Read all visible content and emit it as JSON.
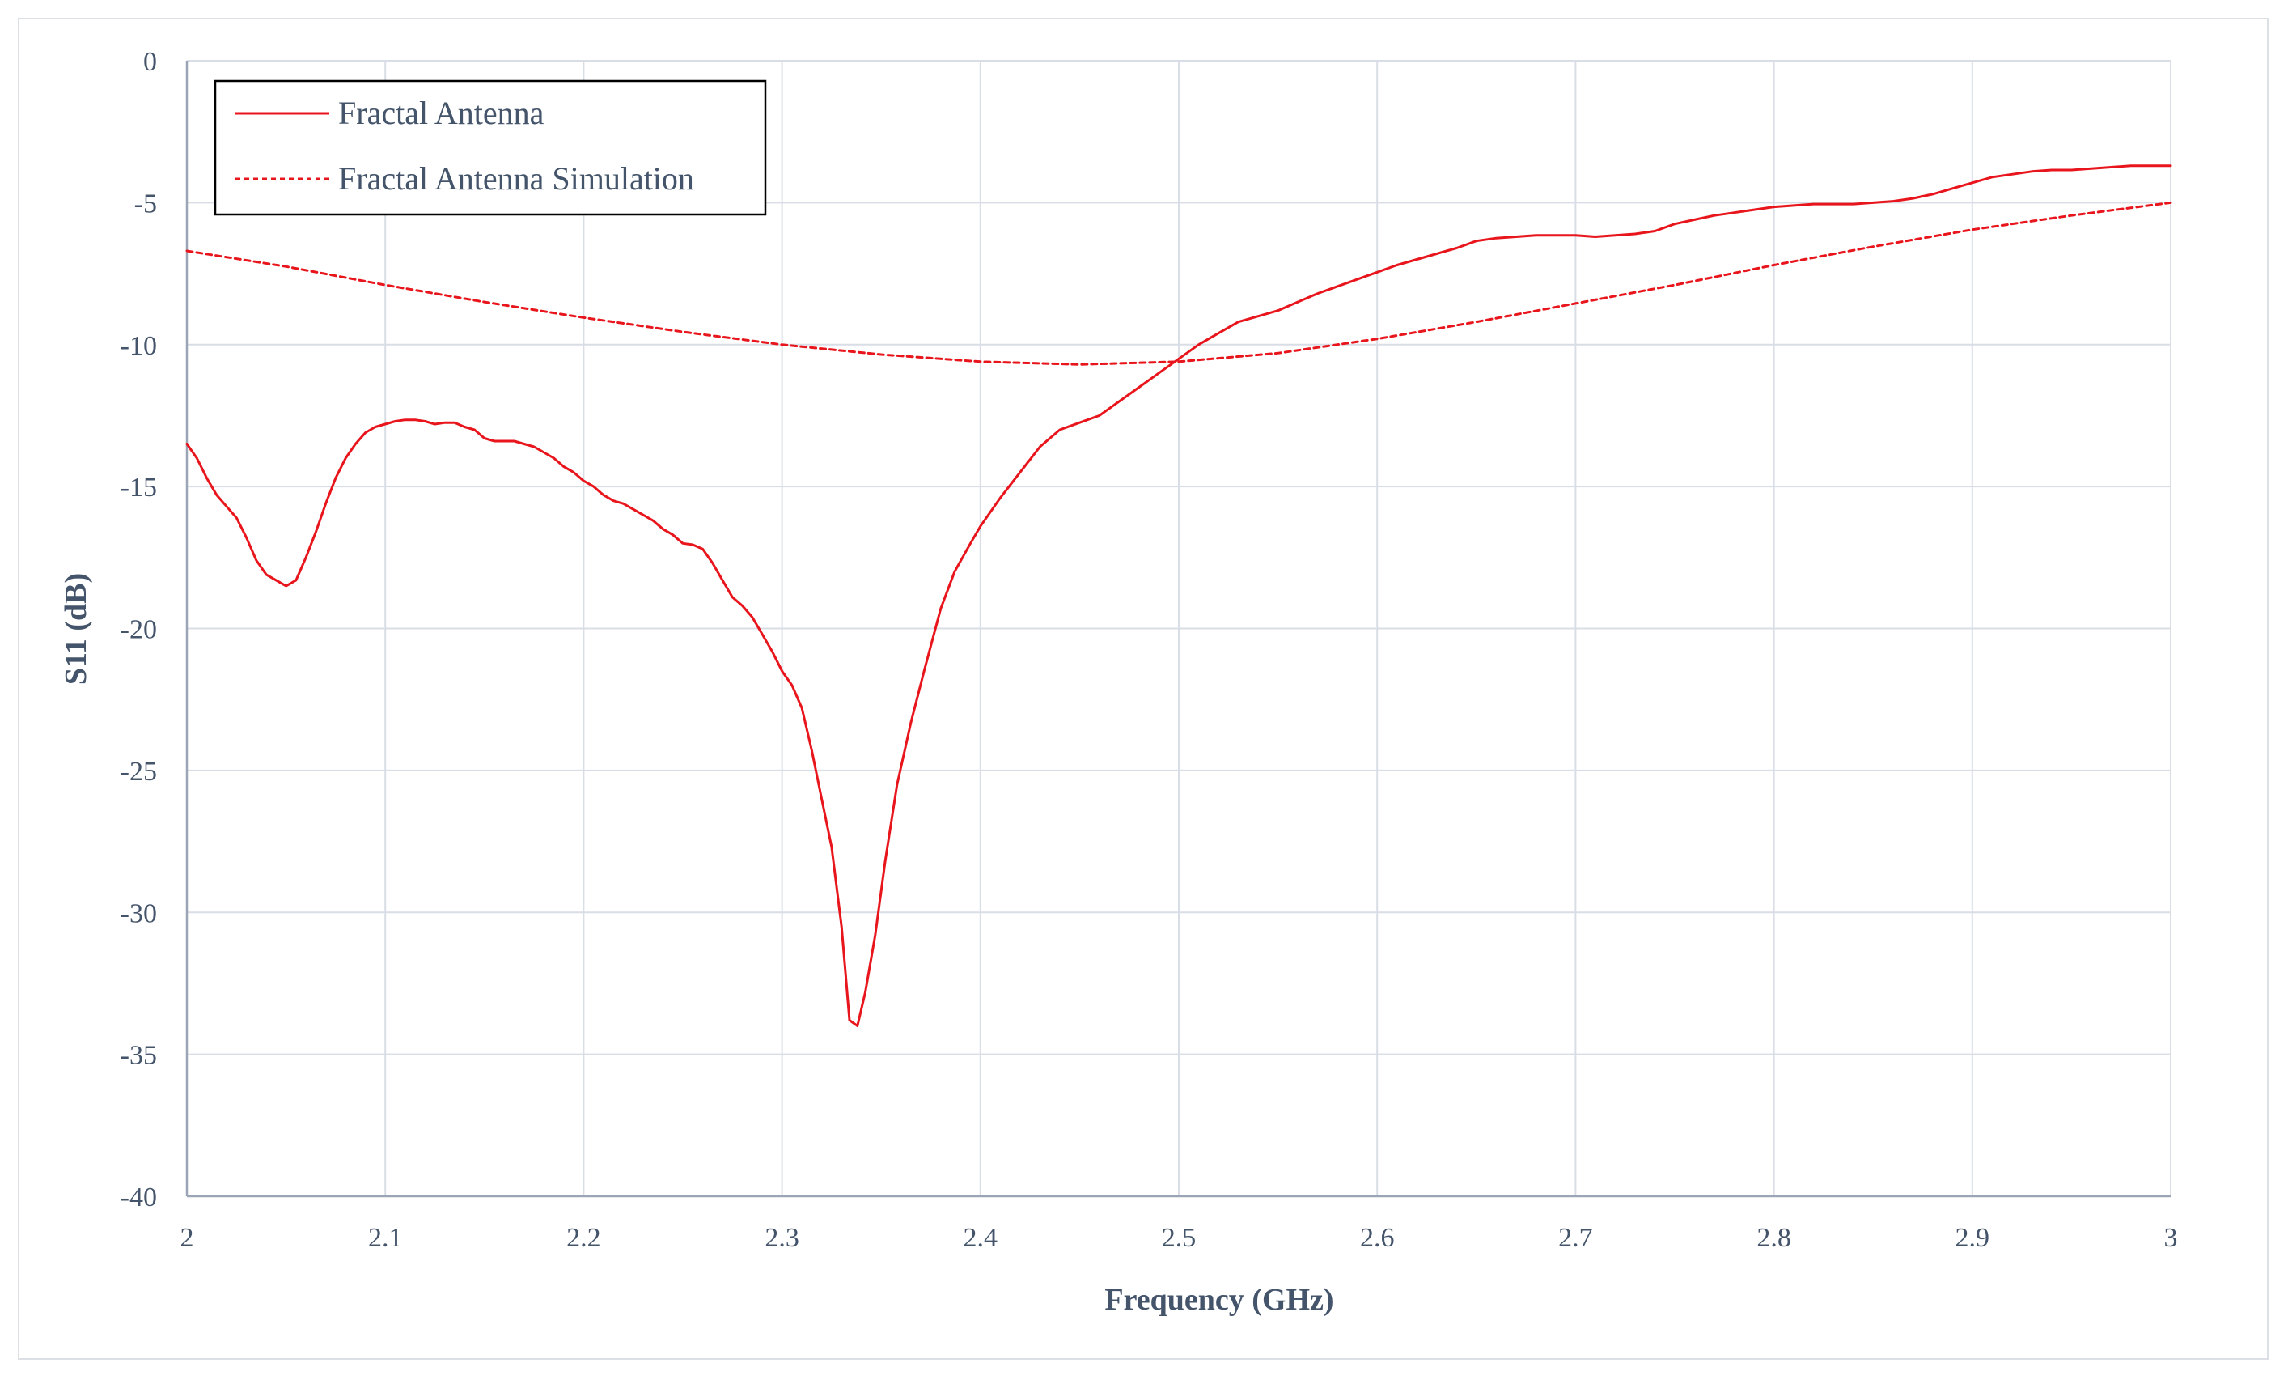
{
  "chart_data": {
    "type": "line",
    "xlabel": "Frequency (GHz)",
    "ylabel": "S11 (dB)",
    "xlim": [
      2,
      3
    ],
    "ylim": [
      -40,
      0
    ],
    "xticks": [
      "2",
      "2.1",
      "2.2",
      "2.3",
      "2.4",
      "2.5",
      "2.6",
      "2.7",
      "2.8",
      "2.9",
      "3"
    ],
    "yticks": [
      "0",
      "-5",
      "-10",
      "-15",
      "-20",
      "-25",
      "-30",
      "-35",
      "-40"
    ],
    "grid": true,
    "legend_position": "top-left",
    "series_color": "#e8161c",
    "series": [
      {
        "name": "Fractal Antenna",
        "style": "solid",
        "points": [
          [
            2.0,
            -13.5
          ],
          [
            2.005,
            -14.0
          ],
          [
            2.01,
            -14.7
          ],
          [
            2.015,
            -15.3
          ],
          [
            2.02,
            -15.7
          ],
          [
            2.025,
            -16.1
          ],
          [
            2.03,
            -16.8
          ],
          [
            2.035,
            -17.6
          ],
          [
            2.04,
            -18.1
          ],
          [
            2.045,
            -18.3
          ],
          [
            2.05,
            -18.5
          ],
          [
            2.055,
            -18.3
          ],
          [
            2.06,
            -17.5
          ],
          [
            2.065,
            -16.6
          ],
          [
            2.07,
            -15.6
          ],
          [
            2.075,
            -14.7
          ],
          [
            2.08,
            -14.0
          ],
          [
            2.085,
            -13.5
          ],
          [
            2.09,
            -13.1
          ],
          [
            2.095,
            -12.9
          ],
          [
            2.1,
            -12.8
          ],
          [
            2.105,
            -12.7
          ],
          [
            2.11,
            -12.65
          ],
          [
            2.115,
            -12.65
          ],
          [
            2.12,
            -12.7
          ],
          [
            2.125,
            -12.8
          ],
          [
            2.13,
            -12.75
          ],
          [
            2.135,
            -12.75
          ],
          [
            2.14,
            -12.9
          ],
          [
            2.145,
            -13.0
          ],
          [
            2.15,
            -13.3
          ],
          [
            2.155,
            -13.4
          ],
          [
            2.16,
            -13.4
          ],
          [
            2.165,
            -13.4
          ],
          [
            2.17,
            -13.5
          ],
          [
            2.175,
            -13.6
          ],
          [
            2.18,
            -13.8
          ],
          [
            2.185,
            -14.0
          ],
          [
            2.19,
            -14.3
          ],
          [
            2.195,
            -14.5
          ],
          [
            2.2,
            -14.8
          ],
          [
            2.205,
            -15.0
          ],
          [
            2.21,
            -15.3
          ],
          [
            2.215,
            -15.5
          ],
          [
            2.22,
            -15.6
          ],
          [
            2.225,
            -15.8
          ],
          [
            2.23,
            -16.0
          ],
          [
            2.235,
            -16.2
          ],
          [
            2.24,
            -16.5
          ],
          [
            2.245,
            -16.7
          ],
          [
            2.25,
            -17.0
          ],
          [
            2.255,
            -17.05
          ],
          [
            2.26,
            -17.2
          ],
          [
            2.265,
            -17.7
          ],
          [
            2.27,
            -18.3
          ],
          [
            2.275,
            -18.9
          ],
          [
            2.28,
            -19.2
          ],
          [
            2.285,
            -19.6
          ],
          [
            2.29,
            -20.2
          ],
          [
            2.295,
            -20.8
          ],
          [
            2.3,
            -21.5
          ],
          [
            2.305,
            -22.0
          ],
          [
            2.31,
            -22.8
          ],
          [
            2.315,
            -24.3
          ],
          [
            2.32,
            -26.0
          ],
          [
            2.325,
            -27.7
          ],
          [
            2.33,
            -30.5
          ],
          [
            2.334,
            -33.8
          ],
          [
            2.338,
            -34.0
          ],
          [
            2.342,
            -32.8
          ],
          [
            2.347,
            -30.8
          ],
          [
            2.352,
            -28.2
          ],
          [
            2.358,
            -25.5
          ],
          [
            2.365,
            -23.3
          ],
          [
            2.372,
            -21.4
          ],
          [
            2.38,
            -19.3
          ],
          [
            2.387,
            -18.0
          ],
          [
            2.395,
            -17.0
          ],
          [
            2.4,
            -16.4
          ],
          [
            2.41,
            -15.4
          ],
          [
            2.42,
            -14.5
          ],
          [
            2.43,
            -13.6
          ],
          [
            2.44,
            -13.0
          ],
          [
            2.45,
            -12.75
          ],
          [
            2.46,
            -12.5
          ],
          [
            2.47,
            -12.0
          ],
          [
            2.48,
            -11.5
          ],
          [
            2.49,
            -11.0
          ],
          [
            2.5,
            -10.5
          ],
          [
            2.51,
            -10.0
          ],
          [
            2.52,
            -9.6
          ],
          [
            2.53,
            -9.2
          ],
          [
            2.54,
            -9.0
          ],
          [
            2.55,
            -8.8
          ],
          [
            2.56,
            -8.5
          ],
          [
            2.57,
            -8.2
          ],
          [
            2.58,
            -7.95
          ],
          [
            2.59,
            -7.7
          ],
          [
            2.6,
            -7.45
          ],
          [
            2.61,
            -7.2
          ],
          [
            2.62,
            -7.0
          ],
          [
            2.63,
            -6.8
          ],
          [
            2.64,
            -6.6
          ],
          [
            2.65,
            -6.35
          ],
          [
            2.66,
            -6.25
          ],
          [
            2.67,
            -6.2
          ],
          [
            2.68,
            -6.15
          ],
          [
            2.69,
            -6.15
          ],
          [
            2.7,
            -6.15
          ],
          [
            2.71,
            -6.2
          ],
          [
            2.72,
            -6.15
          ],
          [
            2.73,
            -6.1
          ],
          [
            2.74,
            -6.0
          ],
          [
            2.75,
            -5.75
          ],
          [
            2.76,
            -5.6
          ],
          [
            2.77,
            -5.45
          ],
          [
            2.78,
            -5.35
          ],
          [
            2.79,
            -5.25
          ],
          [
            2.8,
            -5.15
          ],
          [
            2.81,
            -5.1
          ],
          [
            2.82,
            -5.05
          ],
          [
            2.83,
            -5.05
          ],
          [
            2.84,
            -5.05
          ],
          [
            2.85,
            -5.0
          ],
          [
            2.86,
            -4.95
          ],
          [
            2.87,
            -4.85
          ],
          [
            2.88,
            -4.7
          ],
          [
            2.89,
            -4.5
          ],
          [
            2.9,
            -4.3
          ],
          [
            2.91,
            -4.1
          ],
          [
            2.92,
            -4.0
          ],
          [
            2.93,
            -3.9
          ],
          [
            2.94,
            -3.85
          ],
          [
            2.95,
            -3.85
          ],
          [
            2.96,
            -3.8
          ],
          [
            2.97,
            -3.75
          ],
          [
            2.98,
            -3.7
          ],
          [
            2.99,
            -3.7
          ],
          [
            3.0,
            -3.7
          ]
        ]
      },
      {
        "name": "Fractal Antenna Simulation",
        "style": "dashed",
        "points": [
          [
            2.0,
            -6.7
          ],
          [
            2.05,
            -7.25
          ],
          [
            2.1,
            -7.9
          ],
          [
            2.15,
            -8.5
          ],
          [
            2.2,
            -9.05
          ],
          [
            2.25,
            -9.55
          ],
          [
            2.3,
            -10.0
          ],
          [
            2.35,
            -10.35
          ],
          [
            2.4,
            -10.6
          ],
          [
            2.45,
            -10.7
          ],
          [
            2.5,
            -10.6
          ],
          [
            2.55,
            -10.3
          ],
          [
            2.6,
            -9.8
          ],
          [
            2.65,
            -9.2
          ],
          [
            2.7,
            -8.55
          ],
          [
            2.75,
            -7.9
          ],
          [
            2.8,
            -7.2
          ],
          [
            2.85,
            -6.55
          ],
          [
            2.9,
            -5.95
          ],
          [
            2.95,
            -5.45
          ],
          [
            3.0,
            -5.0
          ]
        ]
      }
    ]
  }
}
